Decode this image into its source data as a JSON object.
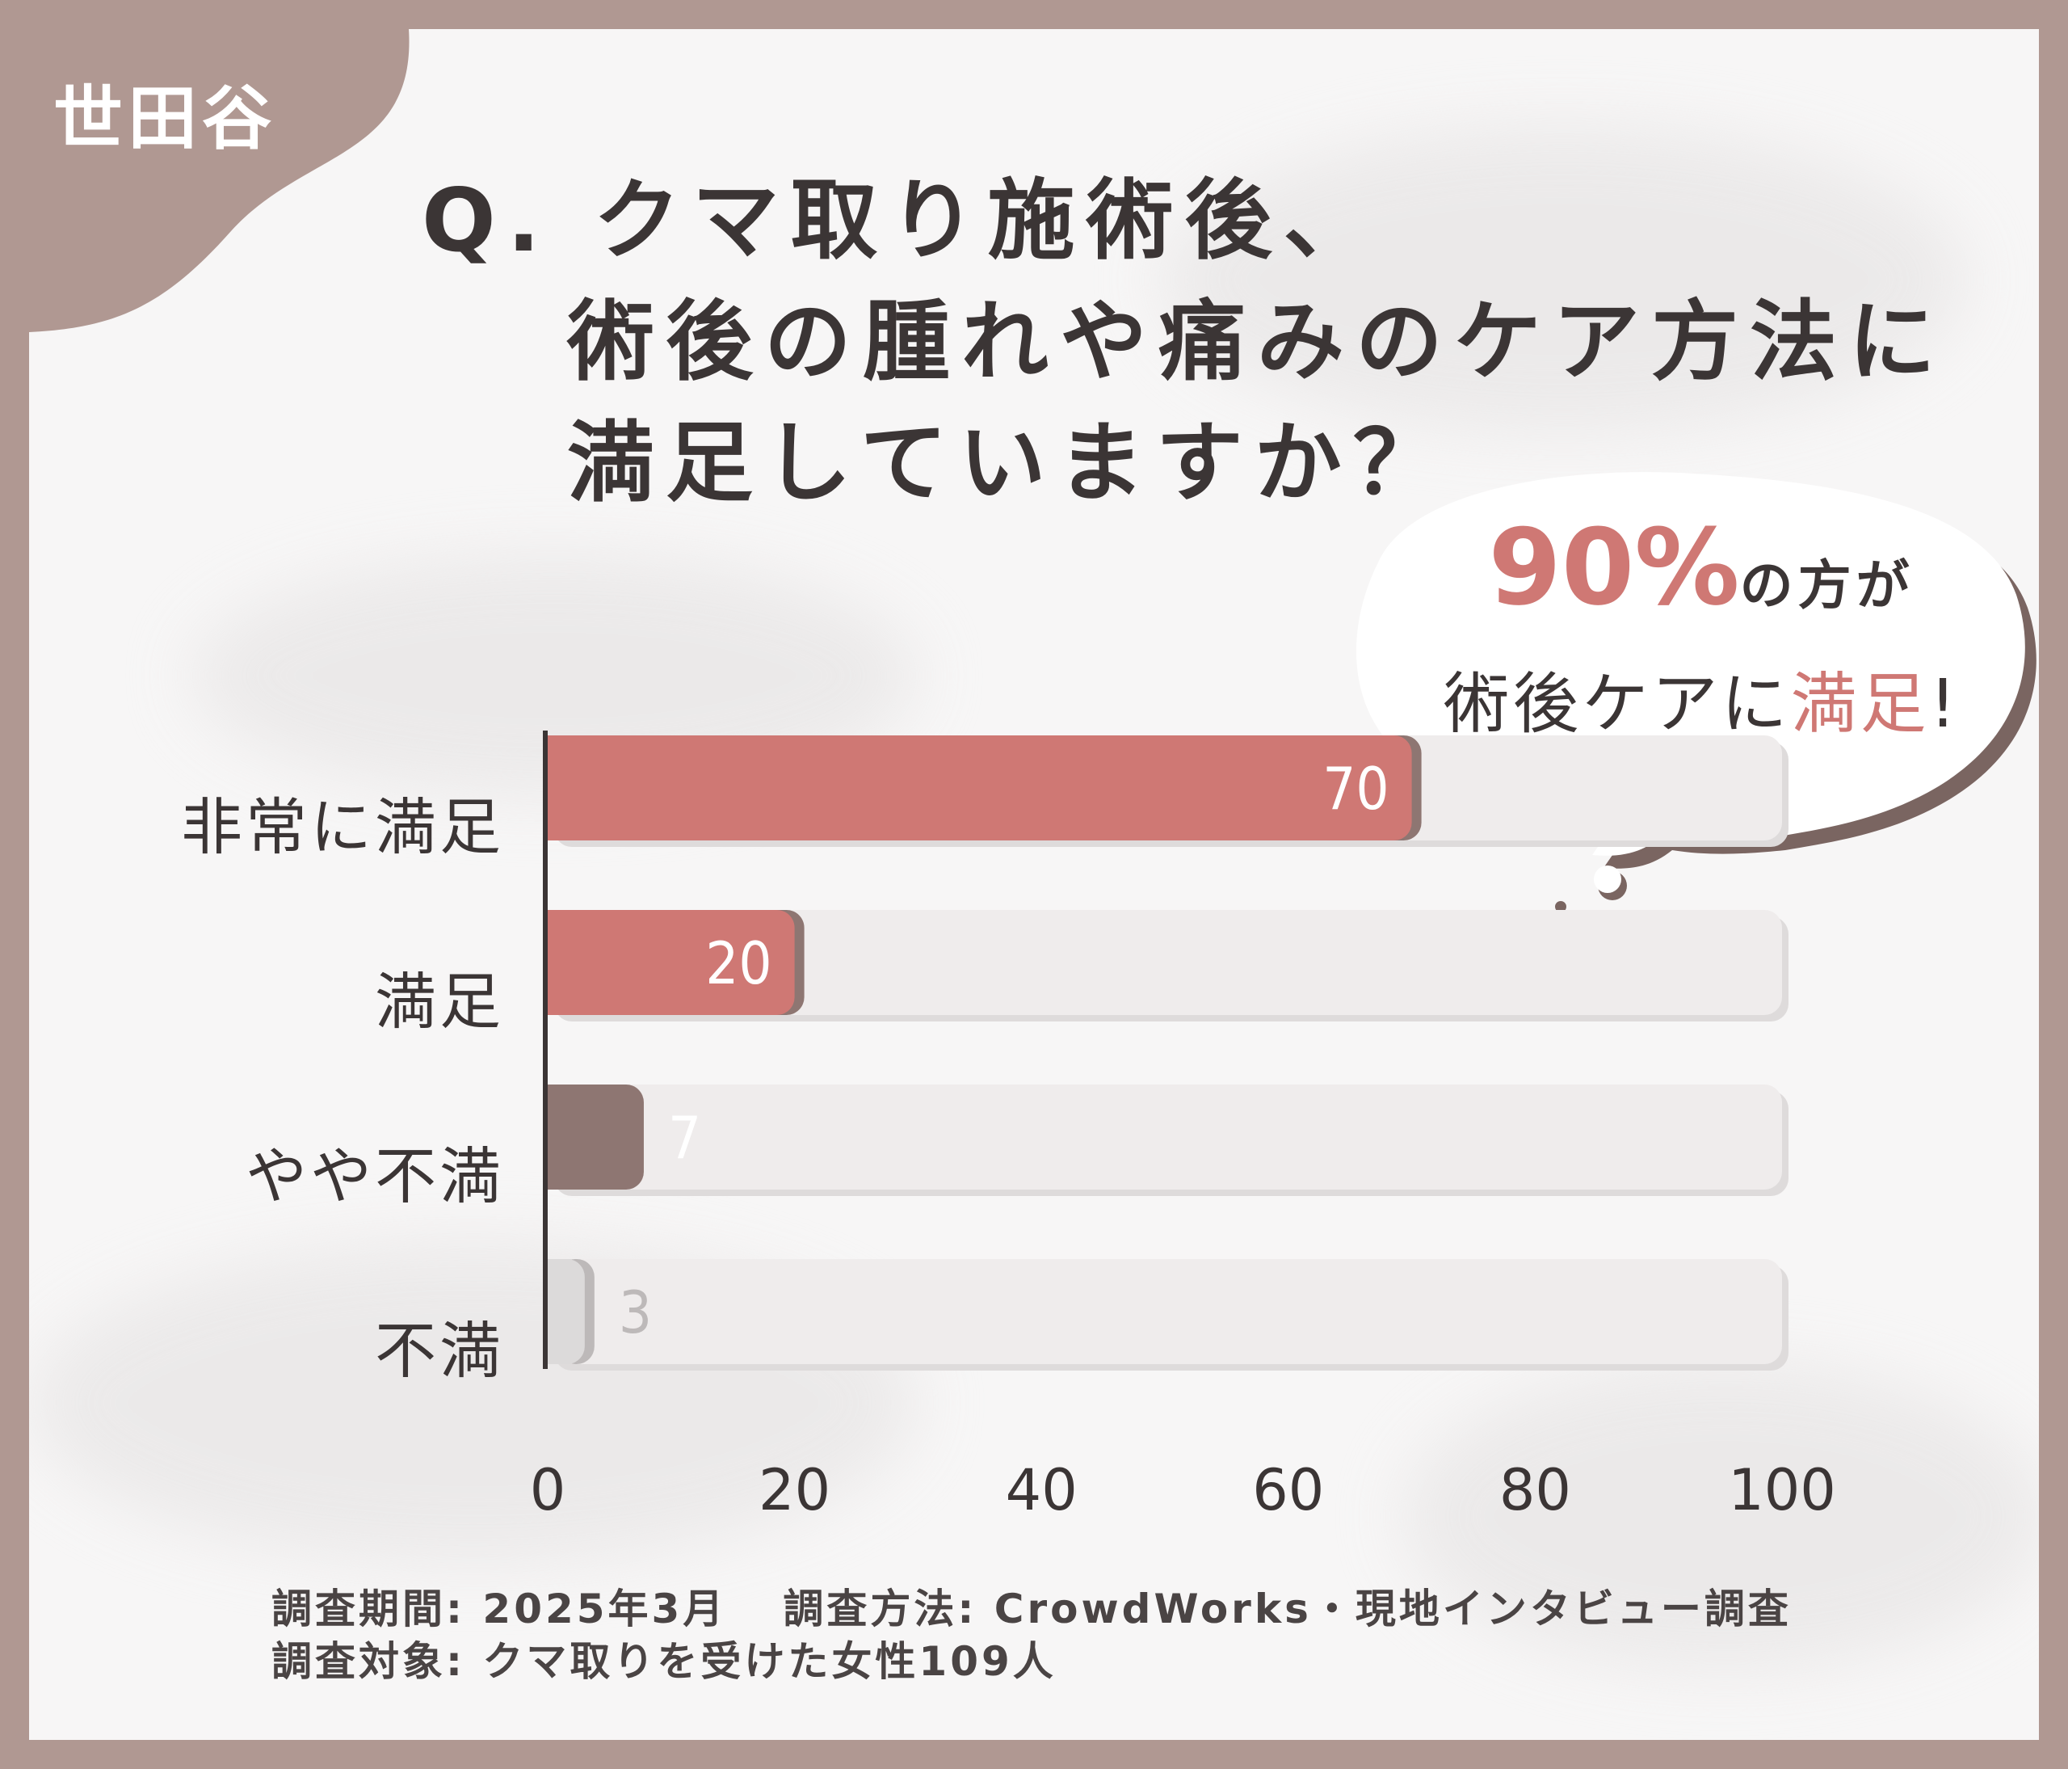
{
  "badge": {
    "text": "世田谷",
    "color": "#b09892"
  },
  "title": {
    "line1": "Q. クマ取り施術後、",
    "line2": "術後の腫れや痛みのケア方法に",
    "line3": "満足していますか？"
  },
  "callout": {
    "percent": "90%",
    "suffix": "の方が",
    "line2_prefix": "術後ケアに",
    "line2_accent": "満足",
    "line2_end": "!"
  },
  "chart_data": {
    "type": "bar",
    "orientation": "horizontal",
    "categories": [
      "非常に満足",
      "満足",
      "やや不満",
      "不満"
    ],
    "values": [
      70,
      20,
      7,
      3
    ],
    "colors": [
      "#cf7874",
      "#cf7874",
      "#8e7672",
      "#dcdada"
    ],
    "value_label_colors": [
      "#ffffff",
      "#ffffff",
      "#ffffff",
      "#bdb9b9"
    ],
    "xlim": [
      0,
      100
    ],
    "x_ticks": [
      "0",
      "20",
      "40",
      "60",
      "80",
      "100"
    ],
    "track_color": "#efecec"
  },
  "footnote": {
    "period": "調査期間: 2025年3月",
    "method": "調査方法: CrowdWorks・現地インタビュー調査",
    "target": "調査対象: クマ取りを受けた女性109人"
  }
}
